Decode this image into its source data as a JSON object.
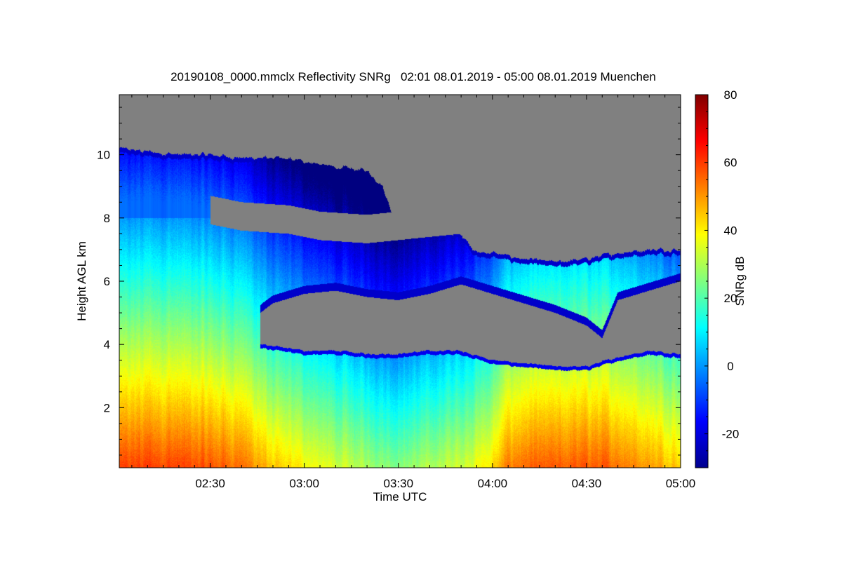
{
  "chart_data": {
    "type": "heatmap",
    "title": "20190108_0000.mmclx Reflectivity SNRg   02:01 08.01.2019 - 05:00 08.01.2019 Muenchen",
    "xlabel": "Time UTC",
    "ylabel": "Height AGL km",
    "colorbar_label": "SNRg dB",
    "x_range_minutes": [
      121,
      300
    ],
    "y_range_km": [
      0.1,
      11.9
    ],
    "c_range_db": [
      -30,
      80
    ],
    "x_ticks": [
      {
        "label": "02:30",
        "value": 150
      },
      {
        "label": "03:00",
        "value": 180
      },
      {
        "label": "03:30",
        "value": 210
      },
      {
        "label": "04:00",
        "value": 240
      },
      {
        "label": "04:30",
        "value": 270
      },
      {
        "label": "05:00",
        "value": 300
      }
    ],
    "y_ticks": [
      {
        "label": "2",
        "value": 2
      },
      {
        "label": "4",
        "value": 4
      },
      {
        "label": "6",
        "value": 6
      },
      {
        "label": "8",
        "value": 8
      },
      {
        "label": "10",
        "value": 10
      }
    ],
    "c_ticks": [
      {
        "label": "-20",
        "value": -20
      },
      {
        "label": "0",
        "value": 0
      },
      {
        "label": "20",
        "value": 20
      },
      {
        "label": "40",
        "value": 40
      },
      {
        "label": "60",
        "value": 60
      },
      {
        "label": "80",
        "value": 80
      }
    ],
    "no_data_color": "#808080",
    "colormap": "jet",
    "echo_top_km": [
      [
        121,
        10.2
      ],
      [
        130,
        10.1
      ],
      [
        140,
        10.0
      ],
      [
        150,
        10.0
      ],
      [
        160,
        9.9
      ],
      [
        170,
        9.9
      ],
      [
        180,
        9.8
      ],
      [
        190,
        9.6
      ],
      [
        200,
        9.5
      ],
      [
        205,
        9.0
      ],
      [
        210,
        7.6
      ],
      [
        220,
        7.5
      ],
      [
        230,
        7.5
      ],
      [
        235,
        6.9
      ],
      [
        240,
        6.9
      ],
      [
        250,
        6.7
      ],
      [
        260,
        6.6
      ],
      [
        270,
        6.7
      ],
      [
        280,
        6.9
      ],
      [
        290,
        7.0
      ],
      [
        300,
        7.0
      ]
    ],
    "upper_layer_base_km": [
      [
        121,
        8.3
      ],
      [
        140,
        8.0
      ],
      [
        150,
        7.8
      ],
      [
        160,
        7.6
      ],
      [
        175,
        7.5
      ],
      [
        185,
        7.3
      ],
      [
        200,
        7.2
      ],
      [
        210,
        7.3
      ],
      [
        220,
        7.4
      ],
      [
        230,
        7.5
      ]
    ],
    "gap_base_km": [
      [
        166,
        4.0
      ],
      [
        180,
        3.8
      ],
      [
        190,
        3.8
      ],
      [
        200,
        3.7
      ],
      [
        210,
        3.7
      ],
      [
        220,
        3.8
      ],
      [
        230,
        3.8
      ],
      [
        240,
        3.5
      ],
      [
        250,
        3.4
      ],
      [
        260,
        3.3
      ],
      [
        270,
        3.3
      ],
      [
        280,
        3.6
      ],
      [
        290,
        3.8
      ],
      [
        300,
        3.7
      ]
    ],
    "gap_top_km": [
      [
        166,
        5.0
      ],
      [
        170,
        5.3
      ],
      [
        180,
        5.6
      ],
      [
        190,
        5.7
      ],
      [
        200,
        5.5
      ],
      [
        210,
        5.4
      ],
      [
        220,
        5.6
      ],
      [
        230,
        5.9
      ],
      [
        240,
        5.6
      ],
      [
        250,
        5.3
      ],
      [
        260,
        5.0
      ],
      [
        270,
        4.6
      ],
      [
        275,
        4.2
      ],
      [
        280,
        5.4
      ],
      [
        290,
        5.7
      ],
      [
        300,
        6.0
      ]
    ],
    "near_surface_snr_db": [
      [
        121,
        58
      ],
      [
        130,
        60
      ],
      [
        140,
        59
      ],
      [
        150,
        57
      ],
      [
        160,
        55
      ],
      [
        165,
        50
      ],
      [
        170,
        44
      ],
      [
        180,
        40
      ],
      [
        190,
        34
      ],
      [
        200,
        30
      ],
      [
        210,
        26
      ],
      [
        220,
        30
      ],
      [
        230,
        34
      ],
      [
        240,
        42
      ],
      [
        245,
        53
      ],
      [
        250,
        55
      ],
      [
        260,
        56
      ],
      [
        270,
        57
      ],
      [
        280,
        55
      ],
      [
        290,
        50
      ],
      [
        300,
        45
      ]
    ]
  }
}
